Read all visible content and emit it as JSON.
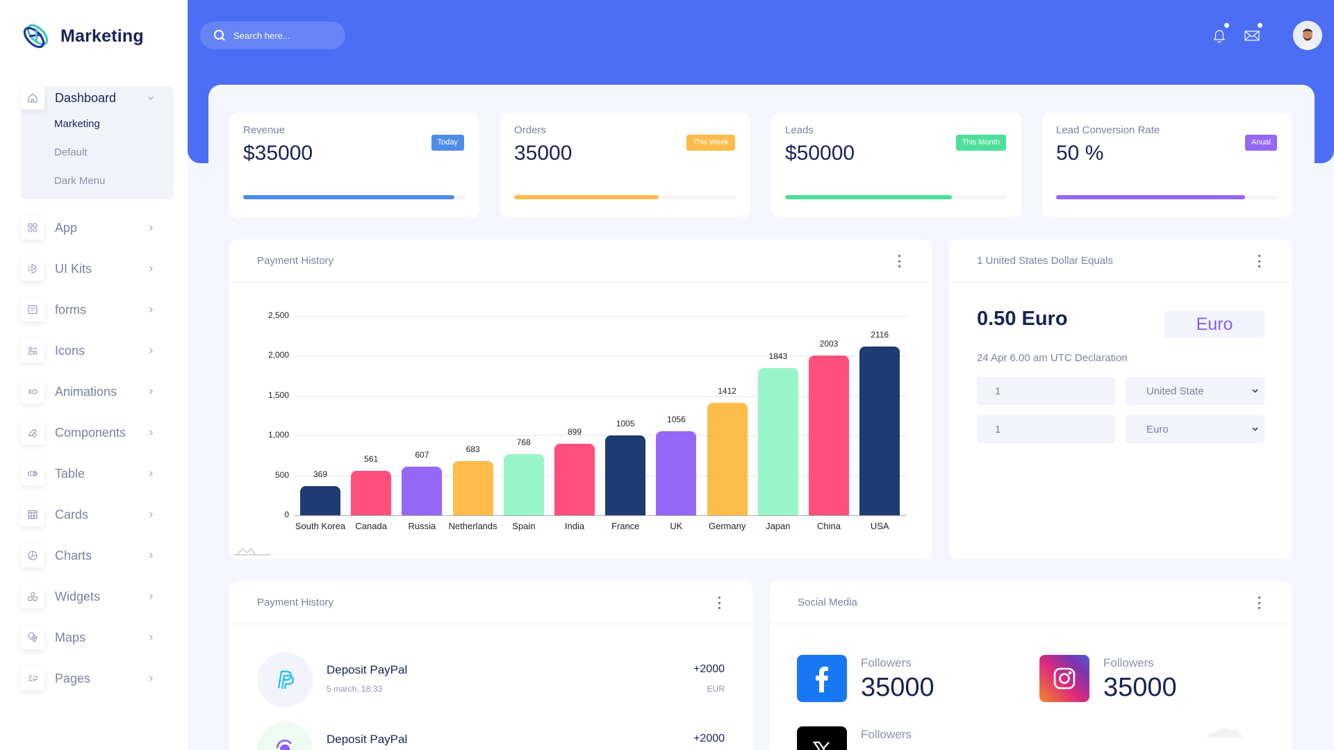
{
  "brand": {
    "name": "Marketing"
  },
  "search": {
    "placeholder": "Search here..."
  },
  "header": {
    "icons": [
      "bell-icon",
      "mail-icon"
    ],
    "accent": "#4b6ef5"
  },
  "sidebar": {
    "dashboard": {
      "label": "Dashboard",
      "expanded": true,
      "children": [
        "Marketing",
        "Default",
        "Dark Menu"
      ],
      "active_child": "Marketing"
    },
    "items": [
      {
        "label": "App",
        "icon": "apps-icon"
      },
      {
        "label": "UI Kits",
        "icon": "ui-kits-icon"
      },
      {
        "label": "forms",
        "icon": "forms-icon"
      },
      {
        "label": "Icons",
        "icon": "icons-icon"
      },
      {
        "label": "Animations",
        "icon": "animations-icon"
      },
      {
        "label": "Components",
        "icon": "components-icon"
      },
      {
        "label": "Table",
        "icon": "table-icon"
      },
      {
        "label": "Cards",
        "icon": "cards-icon"
      },
      {
        "label": "Charts",
        "icon": "charts-icon"
      },
      {
        "label": "Widgets",
        "icon": "widgets-icon"
      },
      {
        "label": "Maps",
        "icon": "maps-icon"
      },
      {
        "label": "Pages",
        "icon": "pages-icon"
      }
    ]
  },
  "stats": [
    {
      "title": "Revenue",
      "value": "$35000",
      "badge": "Today",
      "color": "#4f8ce8",
      "progress": 95
    },
    {
      "title": "Orders",
      "value": "35000",
      "badge": "This Week",
      "color": "#fdbb4a",
      "progress": 65
    },
    {
      "title": "Leads",
      "value": "$50000",
      "badge": "This Month",
      "color": "#4ddf9a",
      "progress": 75
    },
    {
      "title": "Lead Conversion Rate",
      "value": "50 %",
      "badge": "Anual",
      "color": "#9567f5",
      "progress": 85
    }
  ],
  "payment_chart": {
    "title": "Payment History"
  },
  "chart_data": {
    "type": "bar",
    "title": "Payment History",
    "categories": [
      "South Korea",
      "Canada",
      "Russia",
      "Netherlands",
      "Spain",
      "India",
      "France",
      "UK",
      "Germany",
      "Japan",
      "China",
      "USA"
    ],
    "values": [
      369,
      561,
      607,
      683,
      768,
      899,
      1005,
      1056,
      1412,
      1843,
      2003,
      2116
    ],
    "colors": [
      "#1f3b73",
      "#ff4f7c",
      "#9567f5",
      "#fdbb4a",
      "#98f5ca",
      "#ff4f7c",
      "#1f3b73",
      "#9567f5",
      "#fdbb4a",
      "#98f5ca",
      "#ff4f7c",
      "#1f3b73"
    ],
    "yticks": [
      "0",
      "500",
      "1,000",
      "1,500",
      "2,000",
      "2,500"
    ],
    "ylim": [
      0,
      2500
    ],
    "xlabel": "",
    "ylabel": "",
    "grid": true,
    "data_labels": true
  },
  "currency": {
    "title": "1 United States Dollar Equals",
    "result": "0.50 Euro",
    "badge": "Euro",
    "note": "24 Apr 6.00 am UTC Declaration",
    "rows": [
      {
        "amount": "1",
        "currency": "United State"
      },
      {
        "amount": "1",
        "currency": "Euro"
      }
    ]
  },
  "payment_list": {
    "title": "Payment History",
    "items": [
      {
        "name": "Deposit PayPal",
        "date": "5 march, 18:33",
        "amount": "+2000",
        "currency": "EUR",
        "icon": "paypal-icon"
      },
      {
        "name": "Deposit PayPal",
        "date": "",
        "amount": "+2000",
        "currency": "",
        "icon": "dollar-exchange-icon"
      }
    ]
  },
  "social": {
    "title": "Social Media",
    "items": [
      {
        "network": "Facebook",
        "label": "Followers",
        "count": "35000"
      },
      {
        "network": "Instagram",
        "label": "Followers",
        "count": "35000"
      },
      {
        "network": "X",
        "label": "Followers",
        "count": ""
      }
    ]
  }
}
